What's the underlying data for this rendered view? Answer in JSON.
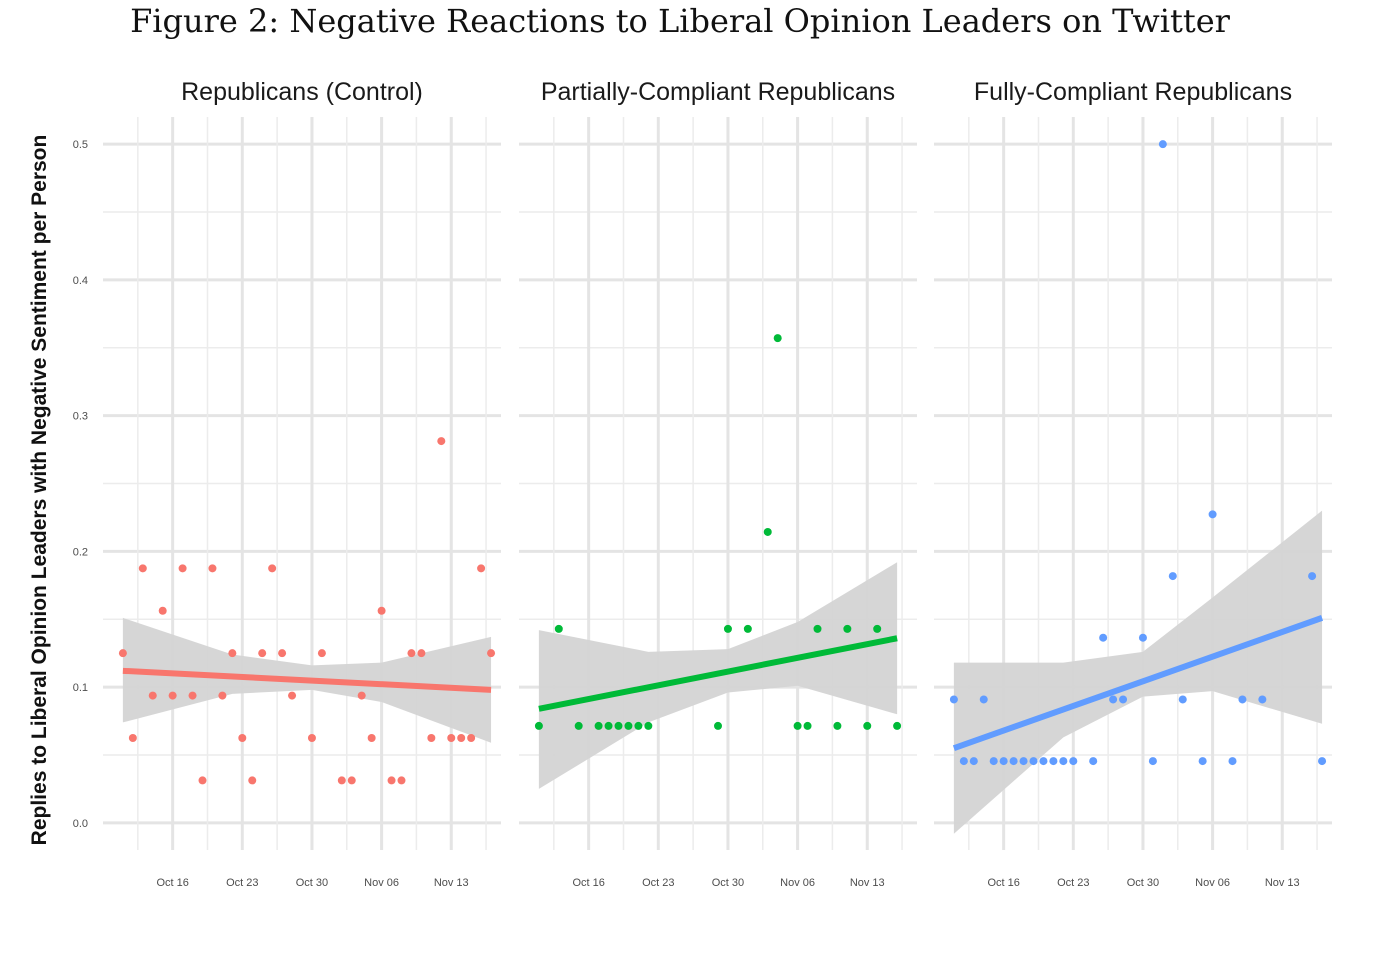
{
  "title": "Figure 2: Negative Reactions to Liberal Opinion Leaders on Twitter",
  "chart_data": {
    "type": "scatter",
    "ylabel": "Replies to Liberal Opinion Leaders with Negative Sentiment per Person",
    "xlabel": "",
    "grid": true,
    "ylim": [
      -0.02,
      0.52
    ],
    "y_ticks": [
      0.0,
      0.1,
      0.2,
      0.3,
      0.4,
      0.5
    ],
    "y_tick_labels": [
      "0.0",
      "0.1",
      "0.2",
      "0.3",
      "0.4",
      "0.5"
    ],
    "xlim": [
      "2019-10-09",
      "2019-11-18"
    ],
    "x_ticks": [
      "2019-10-16",
      "2019-10-23",
      "2019-10-30",
      "2019-11-06",
      "2019-11-13"
    ],
    "x_tick_labels": [
      "Oct 16",
      "Oct 23",
      "Oct 30",
      "Nov 06",
      "Nov 13"
    ],
    "ribbon_color": "#d4d4d4",
    "facets": [
      {
        "title": "Republicans (Control)",
        "color": "#f8766d",
        "points": [
          [
            "2019-10-11",
            0.125
          ],
          [
            "2019-10-12",
            0.0625
          ],
          [
            "2019-10-13",
            0.1875
          ],
          [
            "2019-10-14",
            0.09375
          ],
          [
            "2019-10-15",
            0.15625
          ],
          [
            "2019-10-16",
            0.09375
          ],
          [
            "2019-10-17",
            0.1875
          ],
          [
            "2019-10-18",
            0.09375
          ],
          [
            "2019-10-19",
            0.03125
          ],
          [
            "2019-10-20",
            0.1875
          ],
          [
            "2019-10-21",
            0.09375
          ],
          [
            "2019-10-22",
            0.125
          ],
          [
            "2019-10-23",
            0.0625
          ],
          [
            "2019-10-24",
            0.03125
          ],
          [
            "2019-10-25",
            0.125
          ],
          [
            "2019-10-26",
            0.1875
          ],
          [
            "2019-10-27",
            0.125
          ],
          [
            "2019-10-28",
            0.09375
          ],
          [
            "2019-10-30",
            0.0625
          ],
          [
            "2019-10-31",
            0.125
          ],
          [
            "2019-11-02",
            0.03125
          ],
          [
            "2019-11-03",
            0.03125
          ],
          [
            "2019-11-04",
            0.09375
          ],
          [
            "2019-11-05",
            0.0625
          ],
          [
            "2019-11-06",
            0.15625
          ],
          [
            "2019-11-07",
            0.03125
          ],
          [
            "2019-11-08",
            0.03125
          ],
          [
            "2019-11-09",
            0.125
          ],
          [
            "2019-11-10",
            0.125
          ],
          [
            "2019-11-11",
            0.0625
          ],
          [
            "2019-11-12",
            0.28125
          ],
          [
            "2019-11-13",
            0.0625
          ],
          [
            "2019-11-14",
            0.0625
          ],
          [
            "2019-11-15",
            0.0625
          ],
          [
            "2019-11-16",
            0.1875
          ],
          [
            "2019-11-17",
            0.125
          ]
        ],
        "fit": {
          "x": [
            "2019-10-11",
            "2019-11-17"
          ],
          "y": [
            0.112,
            0.098
          ]
        },
        "ribbon": {
          "x": [
            "2019-10-11",
            "2019-10-22",
            "2019-10-30",
            "2019-11-06",
            "2019-11-17"
          ],
          "lower": [
            0.074,
            0.095,
            0.098,
            0.089,
            0.059
          ],
          "upper": [
            0.151,
            0.124,
            0.116,
            0.118,
            0.137
          ]
        }
      },
      {
        "title": "Partially-Compliant Republicans",
        "color": "#00ba38",
        "points": [
          [
            "2019-10-11",
            0.0714
          ],
          [
            "2019-10-13",
            0.1429
          ],
          [
            "2019-10-15",
            0.0714
          ],
          [
            "2019-10-17",
            0.0714
          ],
          [
            "2019-10-18",
            0.0714
          ],
          [
            "2019-10-19",
            0.0714
          ],
          [
            "2019-10-20",
            0.0714
          ],
          [
            "2019-10-21",
            0.0714
          ],
          [
            "2019-10-22",
            0.0714
          ],
          [
            "2019-10-29",
            0.0714
          ],
          [
            "2019-10-30",
            0.1429
          ],
          [
            "2019-11-01",
            0.1429
          ],
          [
            "2019-11-03",
            0.2143
          ],
          [
            "2019-11-04",
            0.3571
          ],
          [
            "2019-11-06",
            0.0714
          ],
          [
            "2019-11-07",
            0.0714
          ],
          [
            "2019-11-08",
            0.1429
          ],
          [
            "2019-11-10",
            0.0714
          ],
          [
            "2019-11-11",
            0.1429
          ],
          [
            "2019-11-13",
            0.0714
          ],
          [
            "2019-11-14",
            0.1429
          ],
          [
            "2019-11-16",
            0.0714
          ]
        ],
        "fit": {
          "x": [
            "2019-10-11",
            "2019-11-16"
          ],
          "y": [
            0.084,
            0.136
          ]
        },
        "ribbon": {
          "x": [
            "2019-10-11",
            "2019-10-22",
            "2019-10-30",
            "2019-11-06",
            "2019-11-16"
          ],
          "lower": [
            0.025,
            0.074,
            0.096,
            0.101,
            0.08
          ],
          "upper": [
            0.142,
            0.126,
            0.128,
            0.148,
            0.192
          ]
        }
      },
      {
        "title": "Fully-Compliant Republicans",
        "color": "#619cff",
        "points": [
          [
            "2019-10-11",
            0.0909
          ],
          [
            "2019-10-12",
            0.0455
          ],
          [
            "2019-10-13",
            0.0455
          ],
          [
            "2019-10-14",
            0.0909
          ],
          [
            "2019-10-15",
            0.0455
          ],
          [
            "2019-10-16",
            0.0455
          ],
          [
            "2019-10-17",
            0.0455
          ],
          [
            "2019-10-18",
            0.0455
          ],
          [
            "2019-10-19",
            0.0455
          ],
          [
            "2019-10-20",
            0.0455
          ],
          [
            "2019-10-21",
            0.0455
          ],
          [
            "2019-10-22",
            0.0455
          ],
          [
            "2019-10-23",
            0.0455
          ],
          [
            "2019-10-25",
            0.0455
          ],
          [
            "2019-10-26",
            0.1364
          ],
          [
            "2019-10-27",
            0.0909
          ],
          [
            "2019-10-28",
            0.0909
          ],
          [
            "2019-10-30",
            0.1364
          ],
          [
            "2019-10-31",
            0.0455
          ],
          [
            "2019-11-01",
            0.5
          ],
          [
            "2019-11-02",
            0.1818
          ],
          [
            "2019-11-03",
            0.0909
          ],
          [
            "2019-11-05",
            0.0455
          ],
          [
            "2019-11-06",
            0.2273
          ],
          [
            "2019-11-08",
            0.0455
          ],
          [
            "2019-11-09",
            0.0909
          ],
          [
            "2019-11-11",
            0.0909
          ],
          [
            "2019-11-16",
            0.1818
          ],
          [
            "2019-11-17",
            0.0455
          ]
        ],
        "fit": {
          "x": [
            "2019-10-11",
            "2019-11-17"
          ],
          "y": [
            0.055,
            0.151
          ]
        },
        "ribbon": {
          "x": [
            "2019-10-11",
            "2019-10-22",
            "2019-10-30",
            "2019-11-06",
            "2019-11-17"
          ],
          "lower": [
            -0.008,
            0.063,
            0.093,
            0.097,
            0.073
          ],
          "upper": [
            0.118,
            0.118,
            0.126,
            0.166,
            0.23
          ]
        }
      }
    ]
  }
}
